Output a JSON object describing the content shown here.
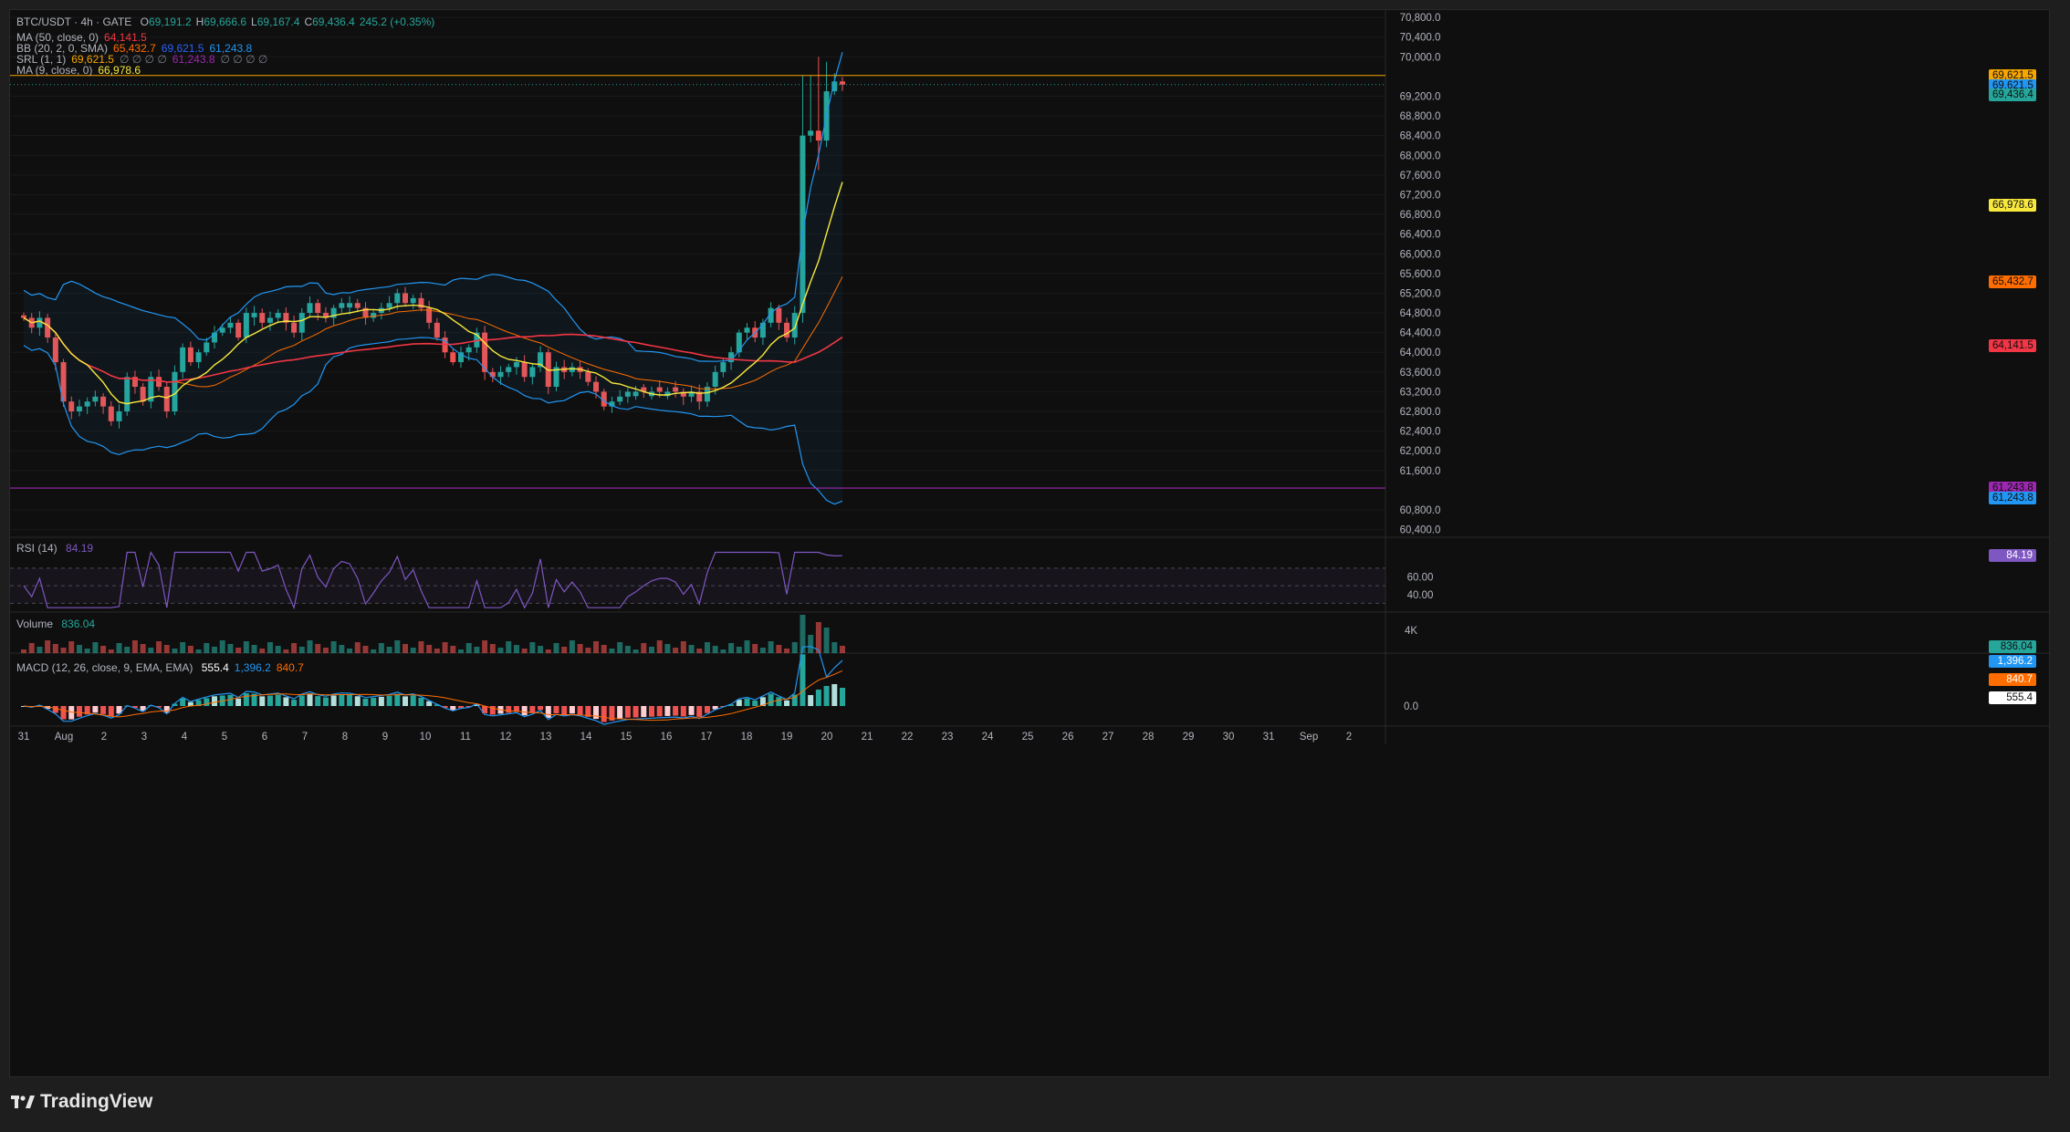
{
  "header": {
    "symbol": "BTC/USDT · 4h · GATE",
    "ohlc": [
      {
        "k": "O",
        "v": "69,191.2"
      },
      {
        "k": "H",
        "v": "69,666.6"
      },
      {
        "k": "L",
        "v": "69,167.4"
      },
      {
        "k": "C",
        "v": "69,436.4"
      },
      {
        "k": "",
        "v": "245.2 (+0.35%)"
      }
    ],
    "up_color": "#26a69a"
  },
  "indicators": [
    {
      "label": "MA (50, close, 0)",
      "values": [
        {
          "v": "64,141.5",
          "c": "#f23645"
        }
      ]
    },
    {
      "label": "BB (20, 2, 0, SMA)",
      "values": [
        {
          "v": "65,432.7",
          "c": "#ff6d00"
        },
        {
          "v": "69,621.5",
          "c": "#2962ff"
        },
        {
          "v": "61,243.8",
          "c": "#2196f3"
        }
      ]
    },
    {
      "label": "SRL (1, 1)",
      "values": [
        {
          "v": "69,621.5",
          "c": "#f7a600"
        },
        {
          "v": "∅ ∅ ∅ ∅",
          "c": "#787b86"
        },
        {
          "v": "61,243.8",
          "c": "#9c27b0"
        },
        {
          "v": "∅ ∅ ∅ ∅",
          "c": "#787b86"
        }
      ]
    },
    {
      "label": "MA (9, close, 0)",
      "values": [
        {
          "v": "66,978.6",
          "c": "#f7e83c"
        }
      ]
    }
  ],
  "price_axis": {
    "ticks": [
      60400,
      60800,
      61600,
      62000,
      62400,
      62800,
      63200,
      63600,
      64000,
      64400,
      64800,
      65200,
      65600,
      66000,
      66400,
      66800,
      67200,
      67600,
      68000,
      68400,
      68800,
      69200,
      70000,
      70400,
      70800
    ],
    "tick_labels": [
      "60,400.0",
      "60,800.0",
      "61,600.0",
      "62,000.0",
      "62,400.0",
      "62,800.0",
      "63,200.0",
      "63,600.0",
      "64,000.0",
      "64,400.0",
      "64,800.0",
      "65,200.0",
      "65,600.0",
      "66,000.0",
      "66,400.0",
      "66,800.0",
      "67,200.0",
      "67,600.0",
      "68,000.0",
      "68,400.0",
      "68,800.0",
      "69,200.0",
      "70,000.0",
      "70,400.0",
      "70,800.0"
    ],
    "range": [
      60300,
      70950
    ]
  },
  "price_tags": [
    {
      "price": 69621.5,
      "label": "69,621.5",
      "color": "#f7a600"
    },
    {
      "price": 69421.5,
      "label": "69,621.5",
      "color": "#2196f3"
    },
    {
      "price": 69221.5,
      "label": "69,436.4",
      "color": "#26a69a"
    },
    {
      "price": 66978.6,
      "label": "66,978.6",
      "color": "#f7e83c"
    },
    {
      "price": 65432.7,
      "label": "65,432.7",
      "color": "#ff6d00"
    },
    {
      "price": 64141.5,
      "label": "64,141.5",
      "color": "#f23645"
    },
    {
      "price": 61243.8,
      "label": "61,243.8",
      "color": "#9c27b0"
    },
    {
      "price": 61043.8,
      "label": "61,243.8",
      "color": "#2196f3"
    }
  ],
  "lines": {
    "resistance": 69621.5,
    "support": 61243.8,
    "last": 69436.4
  },
  "rsi": {
    "label": "RSI (14)",
    "value": "84.19",
    "ticks": [
      "60.00",
      "40.00"
    ],
    "tag_color": "#7e57c2"
  },
  "volume": {
    "label": "Volume",
    "value": "836.04",
    "tick": "4K",
    "tag_color": "#26a69a"
  },
  "macd": {
    "label": "MACD (12, 26, close, 9, EMA, EMA)",
    "values": [
      {
        "v": "555.4",
        "c": "#ffffff"
      },
      {
        "v": "1,396.2",
        "c": "#2196f3"
      },
      {
        "v": "840.7",
        "c": "#ff6d00"
      }
    ],
    "ticks": [
      "0.0"
    ],
    "tag_labels": [
      "1,396.2",
      "840.7",
      "555.4"
    ]
  },
  "time_axis": [
    "31",
    "Aug",
    "2",
    "3",
    "4",
    "5",
    "6",
    "7",
    "8",
    "9",
    "10",
    "11",
    "12",
    "13",
    "14",
    "15",
    "16",
    "17",
    "18",
    "19",
    "20",
    "21",
    "22",
    "23",
    "24",
    "25",
    "26",
    "27",
    "28",
    "29",
    "30",
    "31",
    "Sep",
    "2"
  ],
  "brand": "TradingView",
  "chart_data": {
    "type": "candlestick",
    "title": "BTC/USDT · 4h · GATE",
    "xlabel": "",
    "ylabel": "",
    "close_series": [
      64700,
      64500,
      64700,
      64300,
      63800,
      63000,
      62800,
      62900,
      63000,
      63100,
      62900,
      62600,
      62800,
      63500,
      63300,
      63000,
      63500,
      63300,
      62800,
      63600,
      64100,
      63800,
      64000,
      64200,
      64400,
      64500,
      64600,
      64300,
      64800,
      64800,
      64600,
      64700,
      64800,
      64600,
      64400,
      64800,
      65000,
      64800,
      64700,
      64900,
      65000,
      65000,
      64900,
      64700,
      64800,
      64900,
      65000,
      65200,
      65000,
      65100,
      64900,
      64600,
      64300,
      64000,
      63800,
      64000,
      64100,
      64400,
      63600,
      63500,
      63600,
      63700,
      63800,
      63500,
      63700,
      64000,
      63300,
      63700,
      63600,
      63700,
      63600,
      63400,
      63200,
      62900,
      63000,
      63100,
      63200,
      63200,
      63200,
      63200,
      63200,
      63200,
      63200,
      63100,
      63200,
      63000,
      63300,
      63600,
      63800,
      64000,
      64400,
      64500,
      64300,
      64600,
      64900,
      64600,
      64300,
      64800,
      68400,
      68500,
      68300,
      69300,
      69500,
      69436
    ]
  }
}
